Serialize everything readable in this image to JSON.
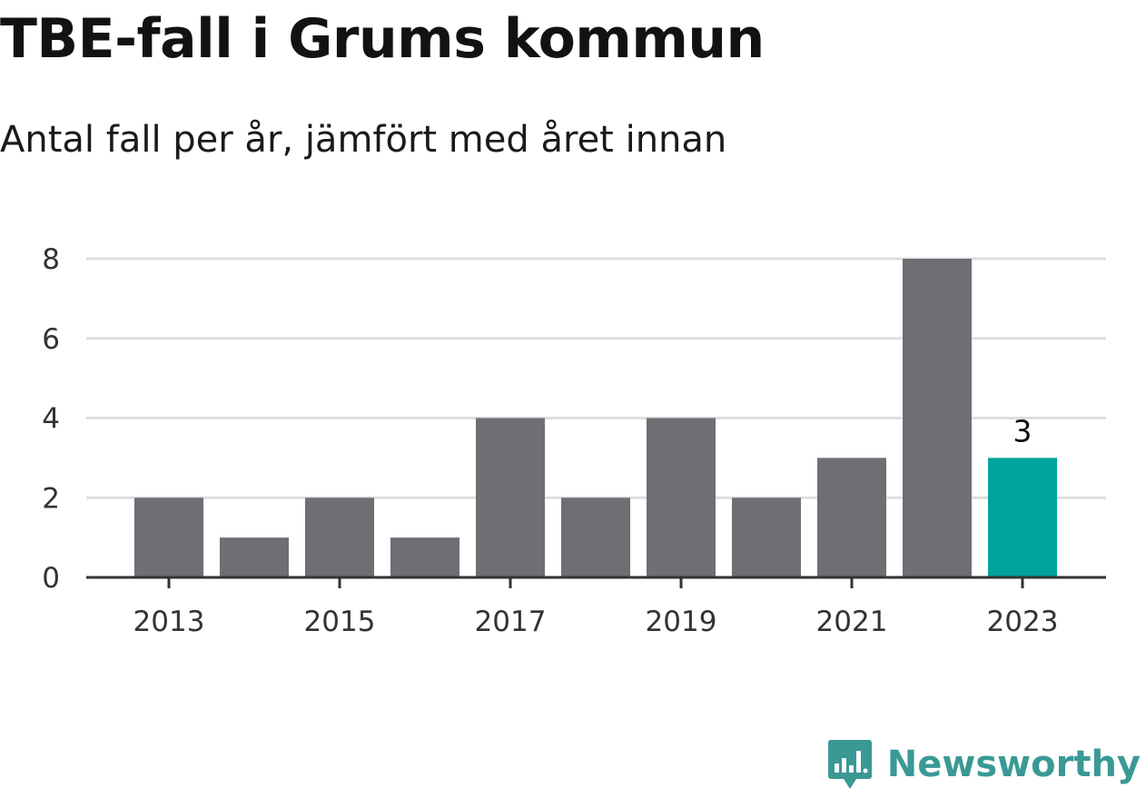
{
  "header": {
    "title": "TBE-fall i Grums kommun",
    "subtitle": "Antal fall per år, jämfört med året innan"
  },
  "brand": {
    "name": "Newsworthy",
    "icon": "chart-bubble-icon",
    "color": "#3a9995"
  },
  "colors": {
    "bar": "#6f6e74",
    "highlight": "#00a39c",
    "grid": "#dedede",
    "axis": "#333333"
  },
  "chart_data": {
    "type": "bar",
    "title": "TBE-fall i Grums kommun",
    "subtitle": "Antal fall per år, jämfört med året innan",
    "categories": [
      "2013",
      "2014",
      "2015",
      "2016",
      "2017",
      "2018",
      "2019",
      "2020",
      "2021",
      "2022",
      "2023"
    ],
    "values": [
      2,
      1,
      2,
      1,
      4,
      2,
      4,
      2,
      3,
      8,
      3
    ],
    "x_tick_labels": [
      "2013",
      "2015",
      "2017",
      "2019",
      "2021",
      "2023"
    ],
    "y_ticks": [
      0,
      2,
      4,
      6,
      8
    ],
    "ylim": [
      0,
      8
    ],
    "grid": true,
    "highlight_category": "2023",
    "data_labels": [
      {
        "category": "2023",
        "text": "3"
      }
    ],
    "xlabel": "",
    "ylabel": ""
  }
}
